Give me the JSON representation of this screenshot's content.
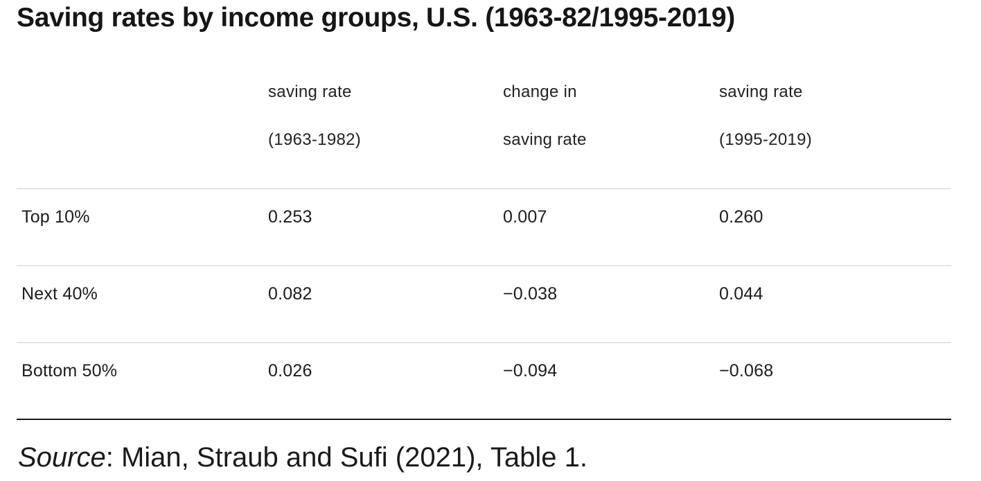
{
  "title": "Saving rates by income groups, U.S. (1963-82/1995-2019)",
  "chart_data": {
    "type": "table",
    "columns": [
      {
        "line1": "",
        "line2": ""
      },
      {
        "line1": "saving rate",
        "line2": "(1963-1982)"
      },
      {
        "line1": "change in",
        "line2": "saving rate"
      },
      {
        "line1": "saving rate",
        "line2": "(1995-2019)"
      }
    ],
    "rows": [
      {
        "label": "Top 10%",
        "values": [
          "0.253",
          "0.007",
          "0.260"
        ]
      },
      {
        "label": "Next 40%",
        "values": [
          "0.082",
          "−0.038",
          "0.044"
        ]
      },
      {
        "label": "Bottom 50%",
        "values": [
          "0.026",
          "−0.094",
          "−0.068"
        ]
      }
    ]
  },
  "source": {
    "label": "Source",
    "text": ": Mian, Straub and Sufi (2021), Table 1."
  }
}
